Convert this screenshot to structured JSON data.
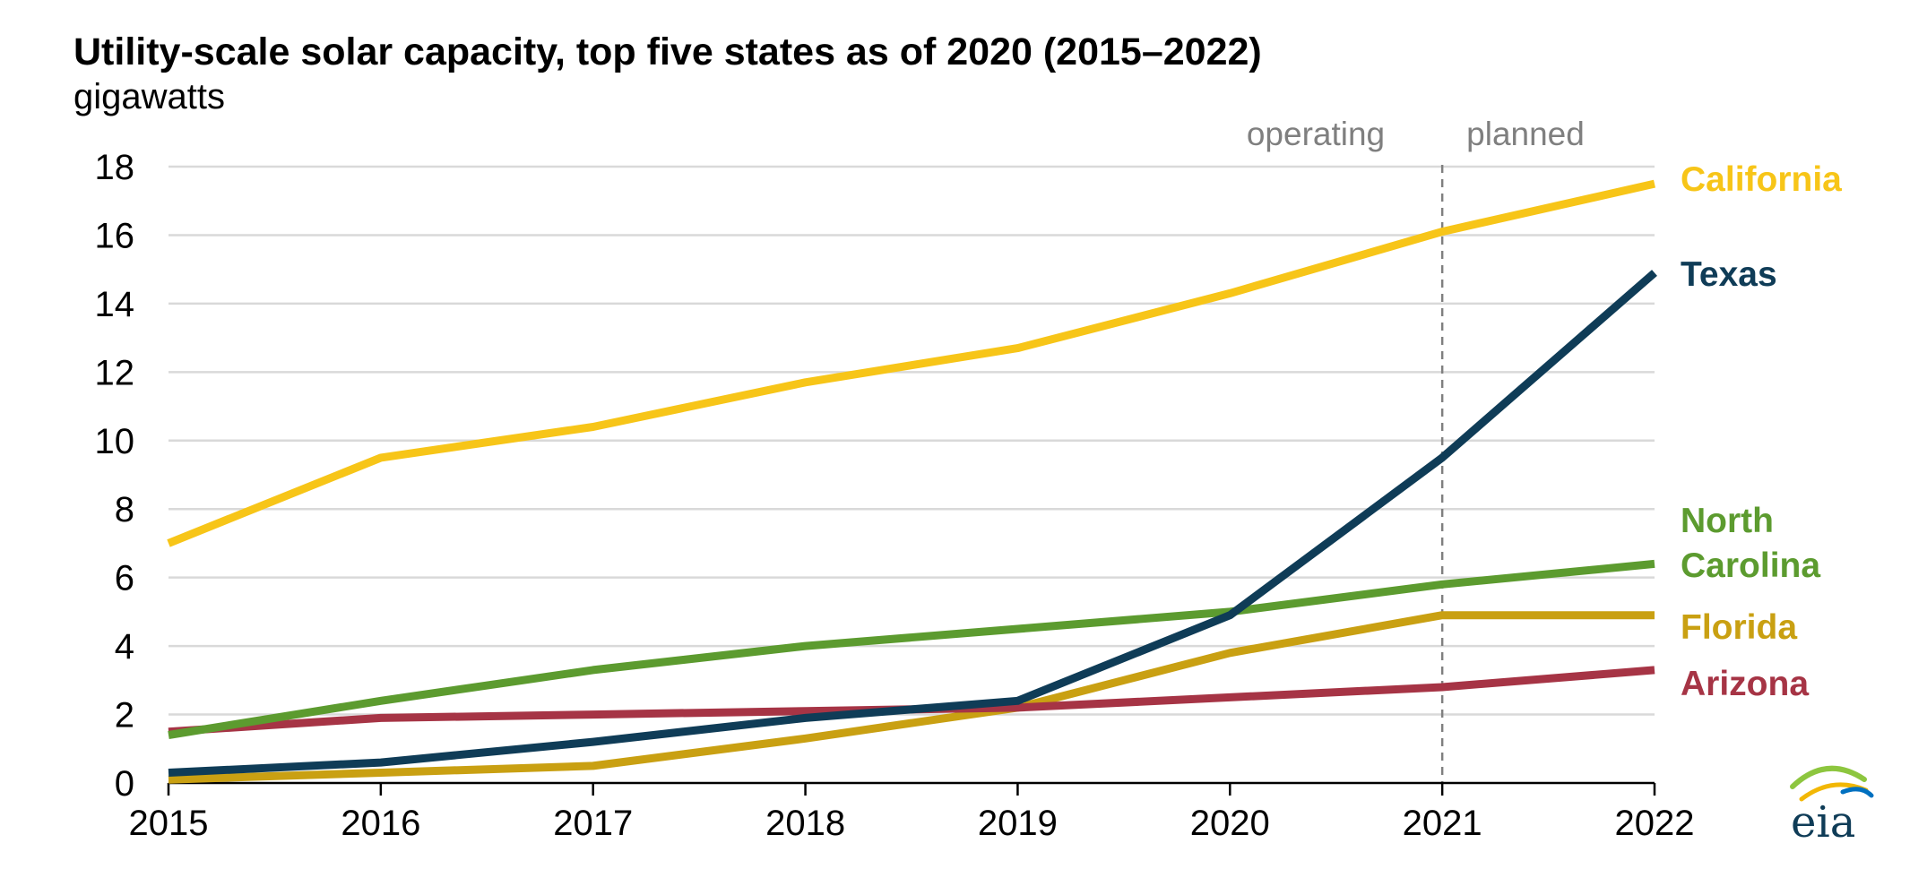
{
  "title": "Utility-scale solar capacity, top five states as of 2020 (2015–2022)",
  "subtitle": "gigawatts",
  "chart_data": {
    "type": "line",
    "title": "Utility-scale solar capacity, top five states as of 2020 (2015–2022)",
    "ylabel": "gigawatts",
    "xlabel": "",
    "x": [
      2015,
      2016,
      2017,
      2018,
      2019,
      2020,
      2021,
      2022
    ],
    "xlim": [
      2015,
      2022
    ],
    "ylim": [
      0,
      18
    ],
    "yticks": [
      0,
      2,
      4,
      6,
      8,
      10,
      12,
      14,
      16,
      18
    ],
    "grid": true,
    "divider": {
      "x": 2021,
      "left_label": "operating",
      "right_label": "planned"
    },
    "series": [
      {
        "name": "California",
        "label_lines": [
          "California"
        ],
        "color": "#f7c518",
        "values": [
          7.0,
          9.5,
          10.4,
          11.7,
          12.7,
          14.3,
          16.1,
          17.5
        ]
      },
      {
        "name": "Texas",
        "label_lines": [
          "Texas"
        ],
        "color": "#0f3c57",
        "values": [
          0.3,
          0.6,
          1.2,
          1.9,
          2.4,
          4.9,
          9.5,
          14.9
        ]
      },
      {
        "name": "North Carolina",
        "label_lines": [
          "North",
          "Carolina"
        ],
        "color": "#5c9b2f",
        "values": [
          1.4,
          2.4,
          3.3,
          4.0,
          4.5,
          5.0,
          5.8,
          6.4
        ]
      },
      {
        "name": "Florida",
        "label_lines": [
          "Florida"
        ],
        "color": "#c9a012",
        "values": [
          0.1,
          0.3,
          0.5,
          1.3,
          2.2,
          3.8,
          4.9,
          4.9
        ]
      },
      {
        "name": "Arizona",
        "label_lines": [
          "Arizona"
        ],
        "color": "#a63445",
        "values": [
          1.5,
          1.9,
          2.0,
          2.1,
          2.2,
          2.5,
          2.8,
          3.3
        ]
      }
    ]
  },
  "logo": {
    "text": "eia"
  }
}
